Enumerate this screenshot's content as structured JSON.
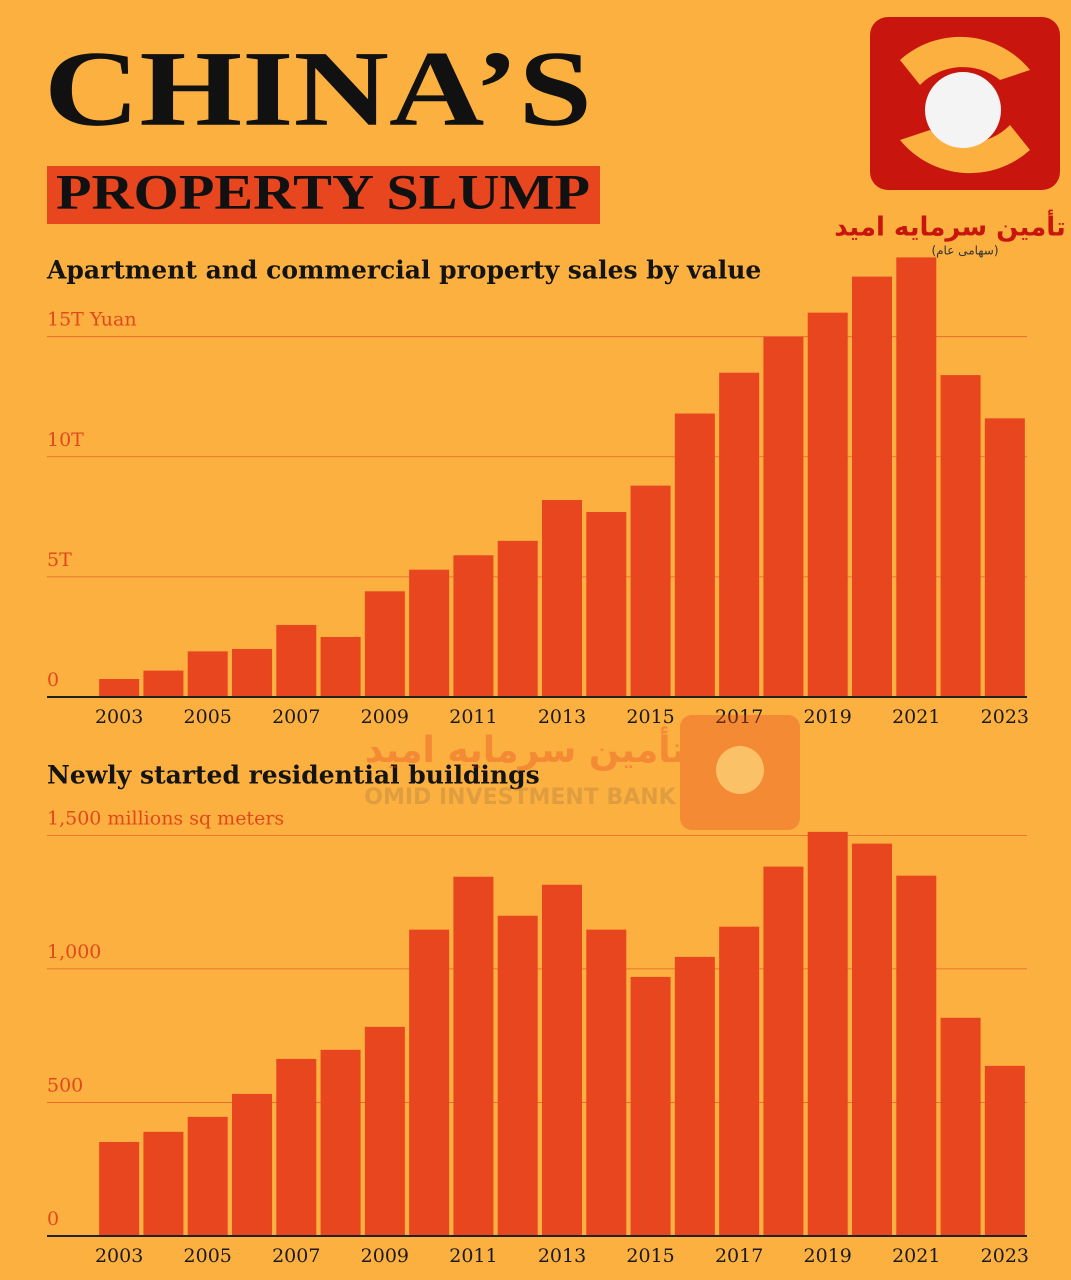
{
  "header": {
    "title": "CHINA’S",
    "subtitle": "PROPERTY SLUMP"
  },
  "logo": {
    "name": "تأمین سرمایه امید",
    "note": "(سهامی عام)"
  },
  "watermark": {
    "name": "تأمین سرمایه امید",
    "english": "OMID INVESTMENT BANK"
  },
  "chart_data": [
    {
      "type": "bar",
      "title": "Apartment and commercial property sales by value",
      "color": "#e8461e",
      "grid": true,
      "categories": [
        "2003",
        null,
        "2005",
        null,
        "2007",
        null,
        "2009",
        null,
        "2011",
        null,
        "2013",
        null,
        "2015",
        null,
        "2017",
        null,
        "2019",
        null,
        "2021",
        null,
        "2023"
      ],
      "values": [
        0.75,
        1.1,
        1.9,
        2.0,
        3.0,
        2.5,
        4.4,
        5.3,
        5.9,
        6.5,
        8.2,
        7.7,
        8.8,
        11.8,
        13.5,
        15.0,
        16.0,
        17.5,
        18.3,
        13.4,
        11.6
      ],
      "ylim": [
        0,
        18.4
      ],
      "yticks": [
        0,
        {
          "value": 5,
          "label": "5T"
        },
        {
          "value": 10,
          "label": "10T"
        },
        {
          "value": 15,
          "label": "15T Yuan"
        }
      ]
    },
    {
      "type": "bar",
      "title": "Newly started residential buildings",
      "color": "#e8461e",
      "grid": true,
      "categories": [
        "2003",
        null,
        "2005",
        null,
        "2007",
        null,
        "2009",
        null,
        "2011",
        null,
        "2013",
        null,
        "2015",
        null,
        "2017",
        null,
        "2019",
        null,
        "2021",
        null,
        "2023"
      ],
      "values": [
        352,
        390,
        446,
        532,
        663,
        697,
        783,
        1147,
        1345,
        1199,
        1315,
        1147,
        970,
        1045,
        1158,
        1383,
        1513,
        1469,
        1349,
        817,
        637
      ],
      "ylim": [
        0,
        1520
      ],
      "yticks": [
        0,
        500,
        {
          "value": 1000,
          "label": "1,000"
        },
        {
          "value": 1500,
          "label": "1,500 millions sq meters"
        }
      ]
    }
  ]
}
